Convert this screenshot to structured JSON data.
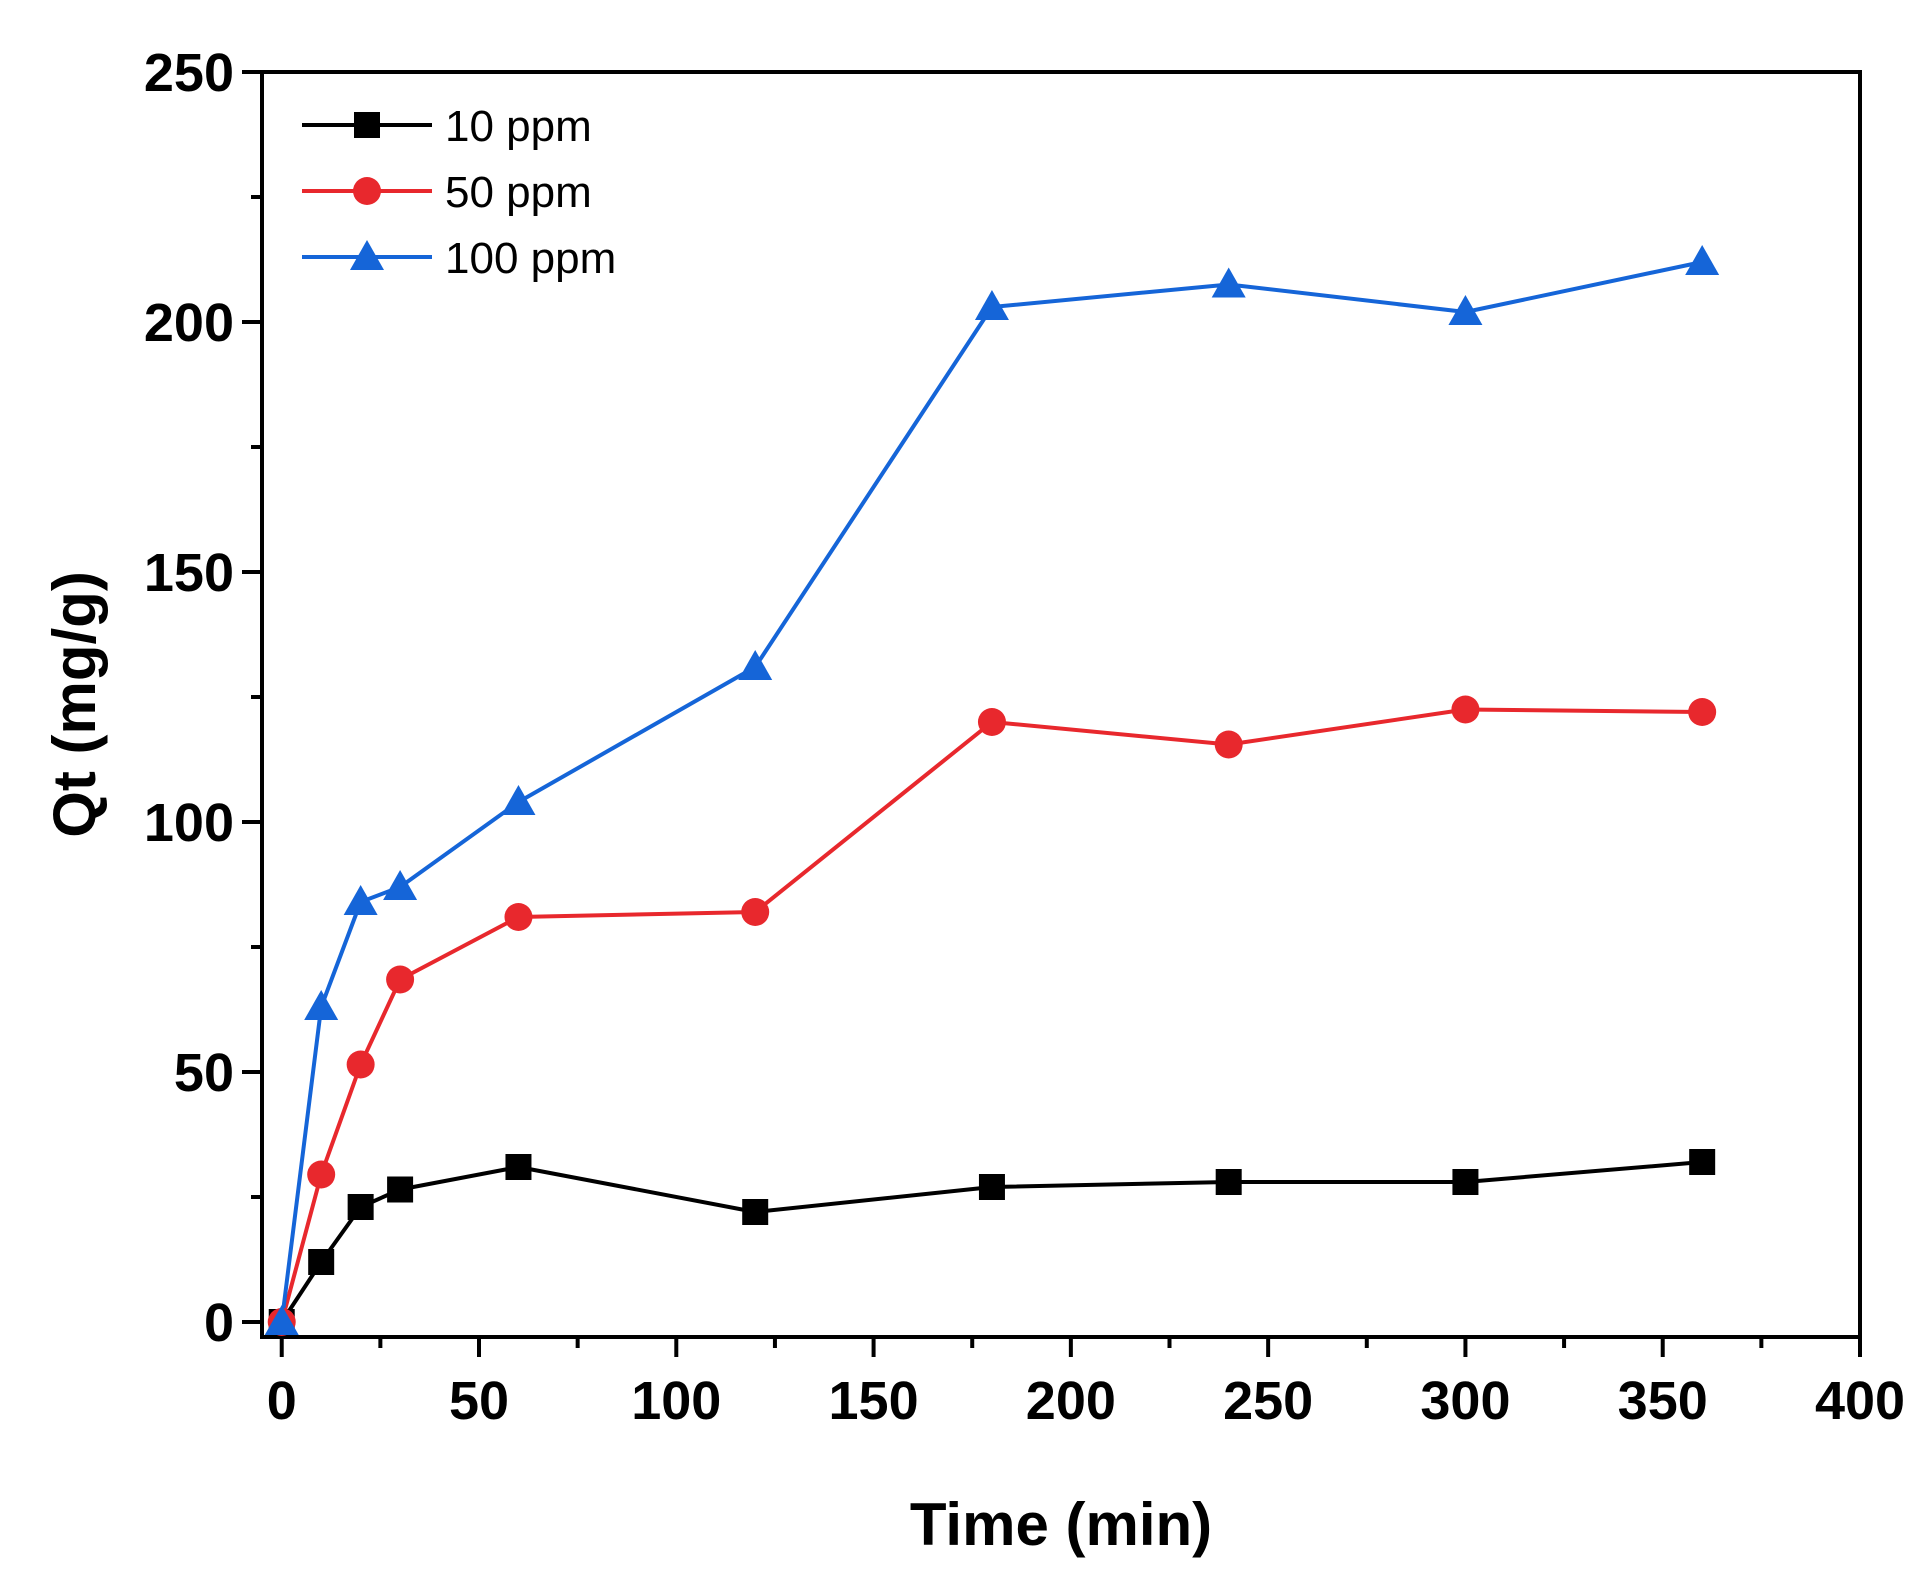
{
  "chart_data": {
    "type": "line",
    "title": "",
    "xlabel": "Time (min)",
    "ylabel": "Qt (mg/g)",
    "xlim": [
      -5,
      400
    ],
    "ylim": [
      -3,
      250
    ],
    "xticks": [
      0,
      50,
      100,
      150,
      200,
      250,
      300,
      350,
      400
    ],
    "yticks": [
      0,
      50,
      100,
      150,
      200,
      250
    ],
    "grid": false,
    "legend_position": "top-left",
    "x": [
      0,
      10,
      20,
      30,
      60,
      120,
      180,
      240,
      300,
      360
    ],
    "series": [
      {
        "name": "10 ppm",
        "color": "#000000",
        "marker": "square",
        "values": [
          0,
          12,
          23,
          26.5,
          31,
          22,
          27,
          28,
          28,
          32
        ]
      },
      {
        "name": "50 ppm",
        "color": "#e8282d",
        "marker": "circle",
        "values": [
          0,
          29.5,
          51.5,
          68.5,
          81,
          82,
          120,
          115.5,
          122.5,
          122
        ]
      },
      {
        "name": "100 ppm",
        "color": "#1565d8",
        "marker": "triangle",
        "values": [
          0,
          63,
          84,
          87,
          104,
          131,
          203,
          207.5,
          202,
          212
        ]
      }
    ]
  }
}
